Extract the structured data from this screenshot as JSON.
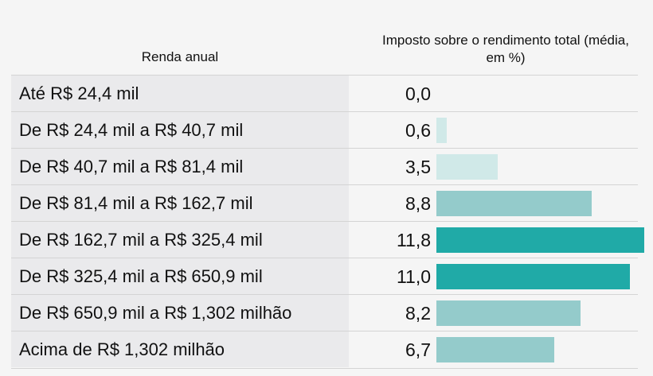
{
  "chart_data": {
    "type": "bar",
    "orientation": "horizontal",
    "category_header": "Renda anual",
    "value_header": "Imposto sobre o rendimento total (média, em %)",
    "categories": [
      "Até R$ 24,4 mil",
      "De R$ 24,4 mil a R$ 40,7 mil",
      "De R$ 40,7 mil a R$ 81,4 mil",
      "De R$ 81,4 mil a R$ 162,7 mil",
      "De R$ 162,7 mil a R$ 325,4 mil",
      "De R$ 325,4 mil a R$ 650,9 mil",
      "De R$ 650,9 mil a R$ 1,302 milhão",
      "Acima de R$ 1,302 milhão"
    ],
    "values": [
      0.0,
      0.6,
      3.5,
      8.8,
      11.8,
      11.0,
      8.2,
      6.7
    ],
    "value_labels": [
      "0,0",
      "0,6",
      "3,5",
      "8,8",
      "11,8",
      "11,0",
      "8,2",
      "6,7"
    ],
    "xlim": [
      0,
      11.8
    ],
    "colors": {
      "low": "#d0e9e8",
      "mid": "#94cbcb",
      "high": "#20aaa7"
    }
  }
}
